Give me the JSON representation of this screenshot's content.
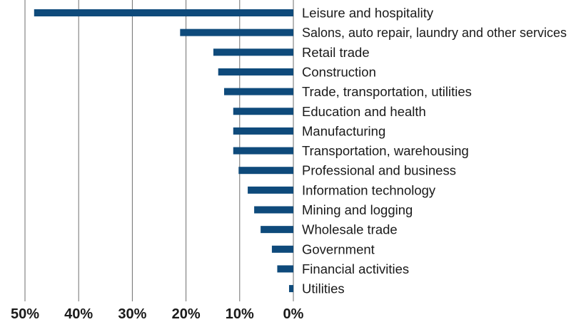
{
  "chart_data": {
    "type": "bar",
    "orientation": "horizontal",
    "direction": "extends-left",
    "title": "",
    "xlabel": "",
    "ylabel": "",
    "categories": [
      "Leisure and hospitality",
      "Salons, auto repair, laundry and other services",
      "Retail trade",
      "Construction",
      "Trade, transportation, utilities",
      "Education and health",
      "Manufacturing",
      "Transportation, warehousing",
      "Professional and business",
      "Information technology",
      "Mining and logging",
      "Wholesale trade",
      "Government",
      "Financial activities",
      "Utilities"
    ],
    "values": [
      48.3,
      21.1,
      14.9,
      14.0,
      12.9,
      11.2,
      11.2,
      11.2,
      10.2,
      8.5,
      7.3,
      6.1,
      4.0,
      3.0,
      0.8
    ],
    "xlim": [
      0,
      50
    ],
    "ticks": [
      50,
      40,
      30,
      20,
      10,
      0
    ],
    "tick_labels": [
      "50%",
      "40%",
      "30%",
      "20%",
      "10%",
      "0%"
    ],
    "grid": true,
    "legend": "none",
    "bar_color": "#0e4a7b",
    "grid_color": "#6e6e6e"
  }
}
